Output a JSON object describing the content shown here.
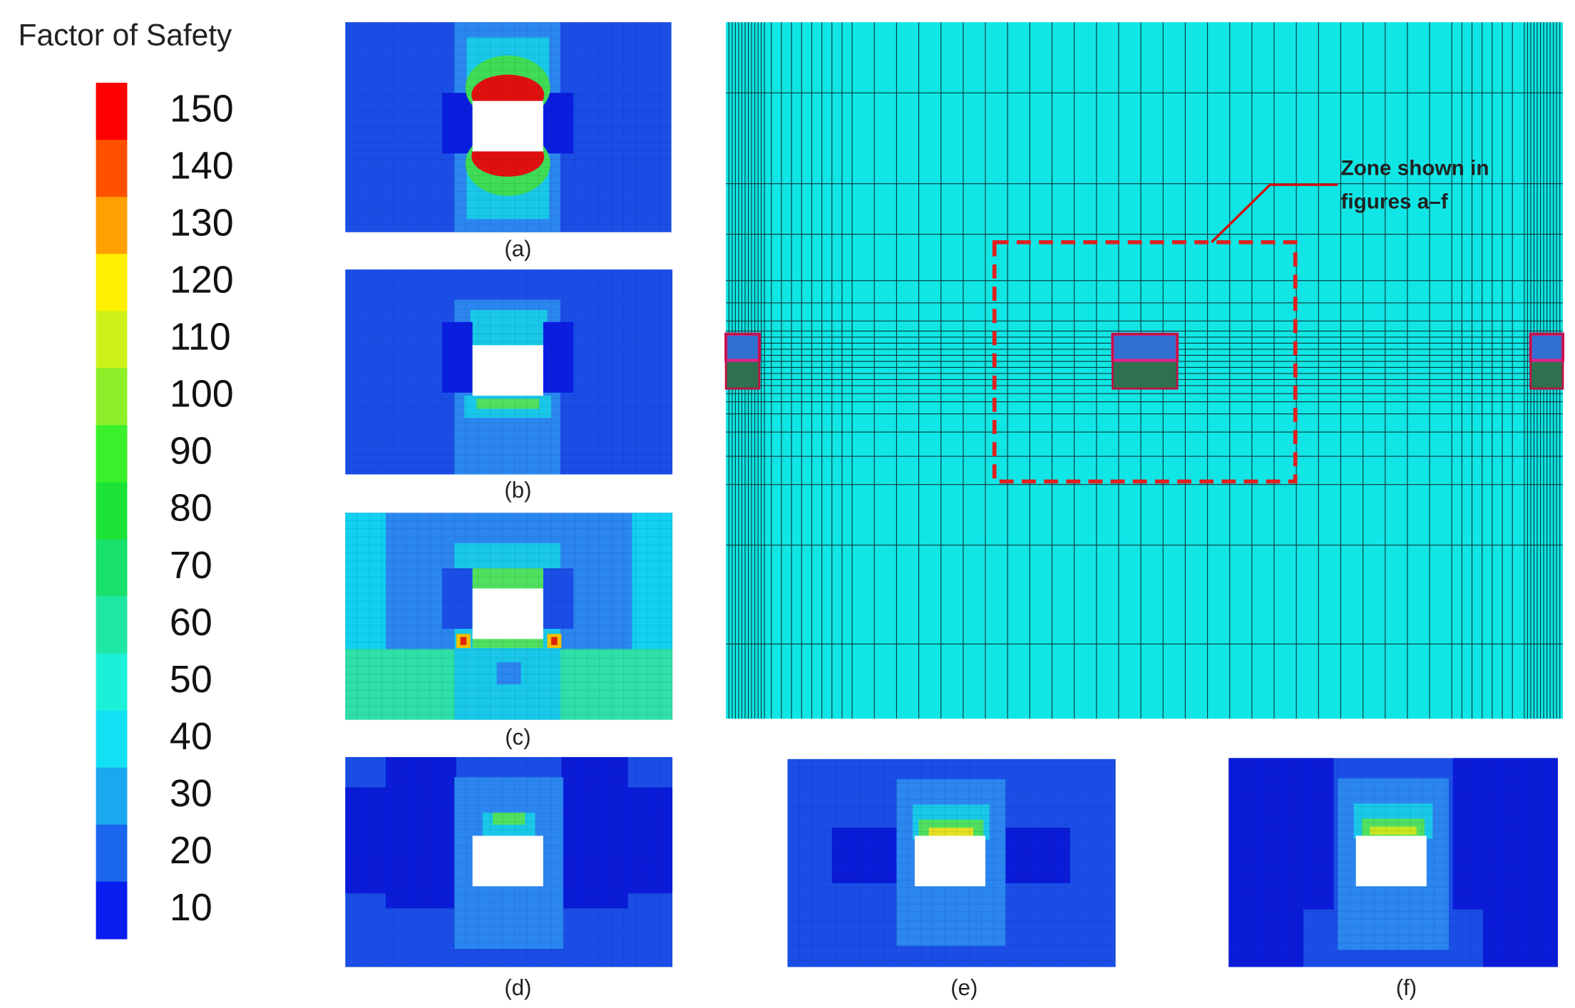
{
  "colorbar": {
    "title": "Factor of Safety",
    "labels": [
      150,
      140,
      130,
      120,
      110,
      100,
      90,
      80,
      70,
      60,
      50,
      40,
      30,
      20,
      10
    ],
    "colors": [
      "#ff0000",
      "#ff5000",
      "#ffa000",
      "#ffef00",
      "#cdf21a",
      "#8def2a",
      "#3af02a",
      "#1ce436",
      "#19e06a",
      "#20e6a4",
      "#1cf0d8",
      "#14e0f4",
      "#1aa8ef",
      "#1a66ef",
      "#0a1ef0"
    ]
  },
  "panels": [
    {
      "label": "(a)"
    },
    {
      "label": "(b)"
    },
    {
      "label": "(c)"
    },
    {
      "label": "(d)"
    },
    {
      "label": "(e)"
    },
    {
      "label": "(f)"
    }
  ],
  "main_panel": {
    "annotation": [
      "Zone shown in",
      "figures a–f"
    ]
  }
}
